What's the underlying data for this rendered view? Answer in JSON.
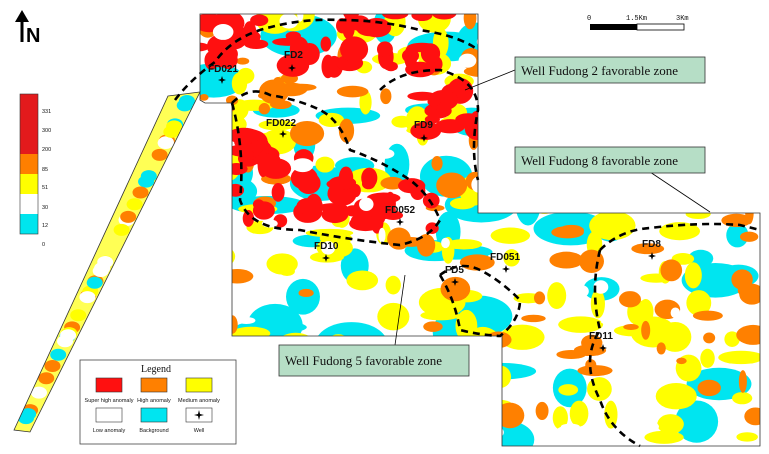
{
  "north": {
    "label": "N"
  },
  "scale_bar": {
    "ticks": [
      "0",
      "1.5Km",
      "3Km"
    ]
  },
  "color_scale": {
    "ticks": [
      "331",
      "300",
      "200",
      "85",
      "51",
      "30",
      "12",
      "0"
    ],
    "bands": [
      "#e31a1c",
      "#e31a1c",
      "#e31a1c",
      "#ff7f00",
      "#ffff00",
      "#ffffff",
      "#00e5ee"
    ]
  },
  "colors": {
    "super_high": "#ff1010",
    "high": "#ff8000",
    "medium": "#ffff00",
    "low": "#ffffff",
    "background": "#00e5f0"
  },
  "legend": {
    "title": "Legend",
    "items": [
      {
        "label": "Super high anomaly",
        "color": "#ff1010"
      },
      {
        "label": "High anomaly",
        "color": "#ff8000"
      },
      {
        "label": "Medium anomaly",
        "color": "#ffff00"
      },
      {
        "label": "Low anomaly",
        "color": "#ffffff"
      },
      {
        "label": "Background",
        "color": "#00e5f0"
      },
      {
        "label": "Well",
        "color": "#ffffff"
      }
    ]
  },
  "wells": [
    {
      "name": "FD021"
    },
    {
      "name": "FD2"
    },
    {
      "name": "FD022"
    },
    {
      "name": "FD9"
    },
    {
      "name": "FD052"
    },
    {
      "name": "FD10"
    },
    {
      "name": "FD5"
    },
    {
      "name": "FD051"
    },
    {
      "name": "FD8"
    },
    {
      "name": "FD11"
    }
  ],
  "callouts": [
    {
      "text": "Well Fudong 2 favorable zone"
    },
    {
      "text": "Well Fudong 8 favorable zone"
    },
    {
      "text": "Well Fudong 5 favorable zone"
    }
  ]
}
